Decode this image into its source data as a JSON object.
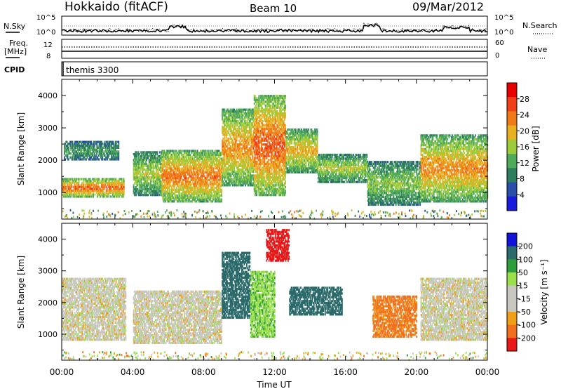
{
  "header": {
    "site": "Hokkaido (fitACF)",
    "beam": "Beam 10",
    "date": "09/Mar/2012"
  },
  "noise_panel": {
    "left_label": "N.Sky",
    "right_label": "N.Search",
    "scale_top": "10^5",
    "scale_bottom": "10^0"
  },
  "freq_panel": {
    "label_line1": "Freq.",
    "label_line2": "[MHz]",
    "freq_top": "12",
    "freq_bottom": "8",
    "nave_top": "60",
    "nave_bottom": "0",
    "right_label": "Nave"
  },
  "cpid_panel": {
    "label": "CPID",
    "value": "themis 3300"
  },
  "chart_data": [
    {
      "type": "heatmap",
      "quantity": "Power",
      "ylabel": "Slant Range [km]",
      "xlabel": "Time UT",
      "ylim": [
        180,
        4500
      ],
      "xlim": [
        "00:00",
        "24:00"
      ],
      "yticks": [
        1000,
        2000,
        3000,
        4000
      ],
      "colorbar": {
        "label": "Power [dB]",
        "ticks": [
          4,
          8,
          12,
          16,
          20,
          24,
          28
        ],
        "range": [
          0,
          32
        ],
        "colors": [
          "#1a1adc",
          "#2a4fa8",
          "#2e7d5e",
          "#4faa5a",
          "#9ccc3a",
          "#e8b020",
          "#f07a18",
          "#f04018",
          "#e80000"
        ]
      },
      "echo_regions": [
        {
          "t0": 0.0,
          "t1": 3.5,
          "r0": 850,
          "r1": 1450,
          "power": 28
        },
        {
          "t0": 0.1,
          "t1": 3.2,
          "r0": 2000,
          "r1": 2600,
          "power": 12
        },
        {
          "t0": 4.0,
          "t1": 5.6,
          "r0": 900,
          "r1": 2300,
          "power": 18
        },
        {
          "t0": 5.6,
          "t1": 9.0,
          "r0": 700,
          "r1": 2300,
          "power": 26
        },
        {
          "t0": 9.0,
          "t1": 10.8,
          "r0": 1200,
          "r1": 3600,
          "power": 24
        },
        {
          "t0": 10.8,
          "t1": 12.6,
          "r0": 900,
          "r1": 4000,
          "power": 28
        },
        {
          "t0": 12.6,
          "t1": 14.4,
          "r0": 1600,
          "r1": 3000,
          "power": 22
        },
        {
          "t0": 14.4,
          "t1": 17.2,
          "r0": 1300,
          "r1": 2200,
          "power": 18
        },
        {
          "t0": 17.2,
          "t1": 20.2,
          "r0": 600,
          "r1": 2000,
          "power": 16
        },
        {
          "t0": 20.2,
          "t1": 24.0,
          "r0": 700,
          "r1": 2800,
          "power": 24
        }
      ]
    },
    {
      "type": "heatmap",
      "quantity": "Velocity",
      "ylabel": "Slant Range [km]",
      "xlabel": "Time UT",
      "ylim": [
        180,
        4500
      ],
      "xlim": [
        "00:00",
        "24:00"
      ],
      "yticks": [
        1000,
        2000,
        3000,
        4000
      ],
      "xticks": [
        "00:00",
        "04:00",
        "08:00",
        "12:00",
        "16:00",
        "20:00",
        "00:00"
      ],
      "colorbar": {
        "label": "Velocity [m s⁻¹]",
        "ticks": [
          "200",
          "100",
          "50",
          "15",
          "-15",
          "-50",
          "-100",
          "-200"
        ],
        "colors": [
          "#1212d8",
          "#2a6a6a",
          "#2f9e3a",
          "#9be04a",
          "#c8c8c0",
          "#c8c8c0",
          "#f0a018",
          "#f07020",
          "#e81818"
        ]
      },
      "echo_regions": [
        {
          "t0": 0.0,
          "t1": 3.6,
          "r0": 800,
          "r1": 2800,
          "velocity": 0
        },
        {
          "t0": 4.0,
          "t1": 9.0,
          "r0": 700,
          "r1": 2400,
          "velocity": 0
        },
        {
          "t0": 9.0,
          "t1": 10.6,
          "r0": 1500,
          "r1": 3600,
          "velocity": 150
        },
        {
          "t0": 10.6,
          "t1": 12.0,
          "r0": 900,
          "r1": 3000,
          "velocity": 40
        },
        {
          "t0": 11.5,
          "t1": 12.8,
          "r0": 3300,
          "r1": 4300,
          "velocity": -200
        },
        {
          "t0": 12.8,
          "t1": 15.8,
          "r0": 1600,
          "r1": 2500,
          "velocity": 150
        },
        {
          "t0": 17.5,
          "t1": 20.0,
          "r0": 900,
          "r1": 2200,
          "velocity": -60
        },
        {
          "t0": 20.2,
          "t1": 24.0,
          "r0": 800,
          "r1": 2800,
          "velocity": 0
        }
      ]
    }
  ]
}
